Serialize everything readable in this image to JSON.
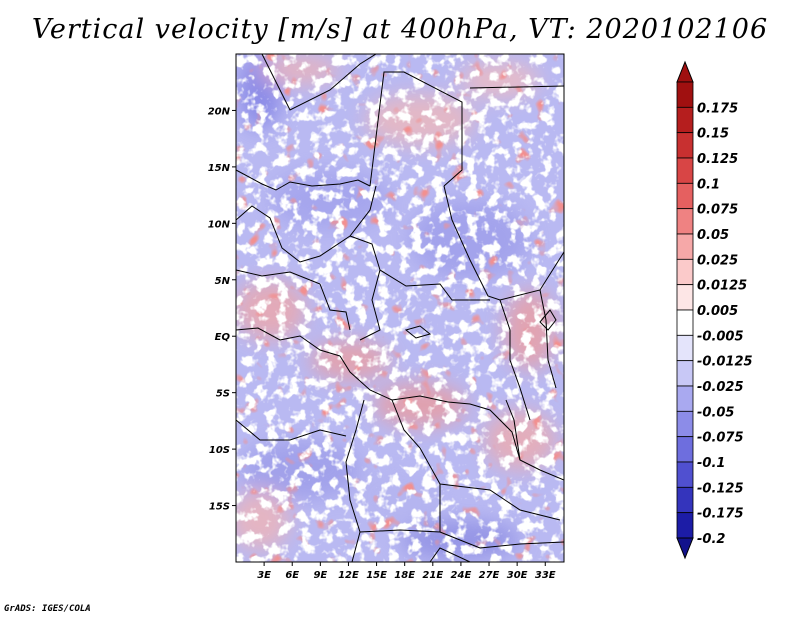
{
  "title": "Vertical velocity [m/s] at 400hPa, VT: 2020102106",
  "credit": "GrADS: IGES/COLA",
  "map": {
    "lat_labels": [
      {
        "value": 20,
        "label": "20N"
      },
      {
        "value": 15,
        "label": "15N"
      },
      {
        "value": 10,
        "label": "10N"
      },
      {
        "value": 5,
        "label": "5N"
      },
      {
        "value": 0,
        "label": "EQ"
      },
      {
        "value": -5,
        "label": "5S"
      },
      {
        "value": -10,
        "label": "10S"
      },
      {
        "value": -15,
        "label": "15S"
      }
    ],
    "lon_labels": [
      {
        "value": 3,
        "label": "3E"
      },
      {
        "value": 6,
        "label": "6E"
      },
      {
        "value": 9,
        "label": "9E"
      },
      {
        "value": 12,
        "label": "12E"
      },
      {
        "value": 15,
        "label": "15E"
      },
      {
        "value": 18,
        "label": "18E"
      },
      {
        "value": 21,
        "label": "21E"
      },
      {
        "value": 24,
        "label": "24E"
      },
      {
        "value": 27,
        "label": "27E"
      },
      {
        "value": 30,
        "label": "30E"
      },
      {
        "value": 33,
        "label": "33E"
      }
    ],
    "lon_range": [
      0,
      35
    ],
    "lat_range": [
      -20,
      25
    ]
  },
  "colorbar": {
    "levels": [
      {
        "label": "0.175",
        "color": "#a01010"
      },
      {
        "label": "0.15",
        "color": "#b51e1e"
      },
      {
        "label": "0.125",
        "color": "#c83030"
      },
      {
        "label": "0.1",
        "color": "#d84545"
      },
      {
        "label": "0.075",
        "color": "#e56060"
      },
      {
        "label": "0.05",
        "color": "#ef8282"
      },
      {
        "label": "0.025",
        "color": "#f6a8a8"
      },
      {
        "label": "0.0125",
        "color": "#fbcaca"
      },
      {
        "label": "0.005",
        "color": "#fde6e6"
      },
      {
        "label": "-0.005",
        "color": "#ffffff"
      },
      {
        "label": "-0.0125",
        "color": "#e4e4fb"
      },
      {
        "label": "-0.025",
        "color": "#c8c8f6"
      },
      {
        "label": "-0.05",
        "color": "#a9a9f0"
      },
      {
        "label": "-0.075",
        "color": "#8c8ce8"
      },
      {
        "label": "-0.1",
        "color": "#6e6ede"
      },
      {
        "label": "-0.125",
        "color": "#5050d0"
      },
      {
        "label": "-0.175",
        "color": "#3434bc"
      },
      {
        "label": "-0.2",
        "color": "#1c1ca6"
      }
    ],
    "top_cap_color": "#a01010",
    "bottom_cap_color": "#12128c"
  }
}
